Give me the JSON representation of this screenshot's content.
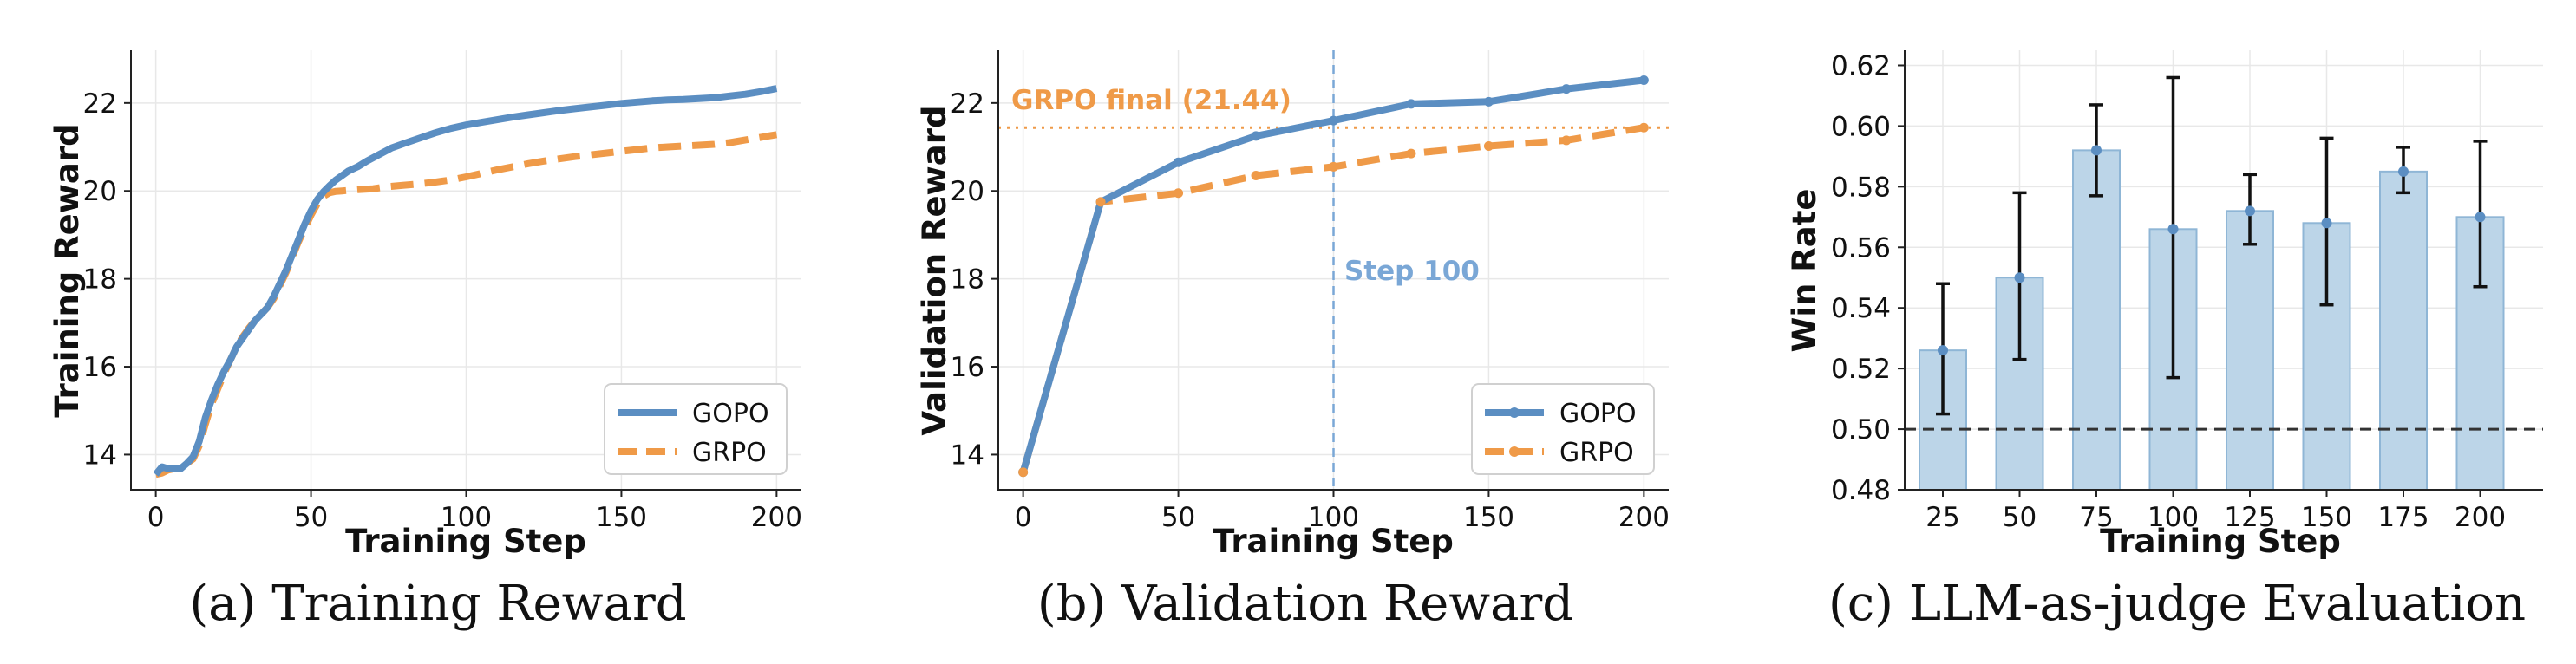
{
  "colors": {
    "gopo": "#5b8ec2",
    "grpo": "#ef9a48",
    "bar_fill": "#bcd5e8",
    "bar_edge": "#8fb6d6",
    "step_line": "#7aa7d6",
    "baseline": "#333333"
  },
  "chart_data": [
    {
      "type": "line",
      "caption": "(a) Training Reward",
      "xlabel": "Training Step",
      "ylabel": "Training Reward",
      "xlim": [
        -8,
        208
      ],
      "ylim": [
        13.2,
        23.2
      ],
      "xticks": [
        0,
        50,
        100,
        150,
        200
      ],
      "yticks": [
        14,
        16,
        18,
        20,
        22
      ],
      "legend": {
        "position": "lower-right",
        "entries": [
          "GOPO",
          "GRPO"
        ]
      },
      "series": [
        {
          "name": "GOPO",
          "x": [
            0,
            2,
            4,
            6,
            8,
            10,
            12,
            14,
            16,
            18,
            20,
            22,
            24,
            26,
            28,
            30,
            32,
            34,
            36,
            38,
            40,
            42,
            44,
            46,
            48,
            50,
            52,
            54,
            56,
            58,
            60,
            62,
            65,
            68,
            72,
            76,
            80,
            85,
            90,
            95,
            100,
            105,
            110,
            115,
            120,
            125,
            130,
            135,
            140,
            145,
            150,
            155,
            160,
            165,
            170,
            175,
            180,
            185,
            190,
            195,
            200
          ],
          "y": [
            13.55,
            13.72,
            13.68,
            13.68,
            13.68,
            13.8,
            13.95,
            14.3,
            14.85,
            15.25,
            15.6,
            15.9,
            16.15,
            16.45,
            16.65,
            16.85,
            17.05,
            17.2,
            17.35,
            17.6,
            17.9,
            18.2,
            18.55,
            18.9,
            19.25,
            19.55,
            19.8,
            19.98,
            20.12,
            20.25,
            20.35,
            20.45,
            20.55,
            20.68,
            20.83,
            20.98,
            21.08,
            21.2,
            21.32,
            21.42,
            21.5,
            21.56,
            21.62,
            21.68,
            21.73,
            21.78,
            21.83,
            21.87,
            21.91,
            21.95,
            21.99,
            22.02,
            22.05,
            22.07,
            22.08,
            22.1,
            22.12,
            22.16,
            22.2,
            22.26,
            22.33
          ]
        },
        {
          "name": "GRPO",
          "x": [
            0,
            2,
            4,
            6,
            8,
            10,
            12,
            14,
            16,
            18,
            20,
            22,
            24,
            26,
            28,
            30,
            32,
            34,
            36,
            38,
            40,
            42,
            44,
            46,
            48,
            50,
            52,
            54,
            56,
            58,
            60,
            65,
            70,
            75,
            80,
            85,
            90,
            95,
            100,
            105,
            110,
            115,
            120,
            125,
            130,
            135,
            140,
            145,
            150,
            155,
            160,
            165,
            170,
            175,
            180,
            185,
            190,
            195,
            200
          ],
          "y": [
            13.55,
            13.58,
            13.65,
            13.68,
            13.7,
            13.8,
            13.9,
            14.2,
            14.7,
            15.15,
            15.5,
            15.85,
            16.15,
            16.45,
            16.68,
            16.88,
            17.05,
            17.2,
            17.35,
            17.55,
            17.85,
            18.15,
            18.5,
            18.85,
            19.15,
            19.45,
            19.7,
            19.88,
            19.96,
            19.99,
            20.0,
            20.03,
            20.05,
            20.1,
            20.13,
            20.16,
            20.2,
            20.25,
            20.32,
            20.4,
            20.48,
            20.55,
            20.62,
            20.68,
            20.73,
            20.78,
            20.82,
            20.86,
            20.9,
            20.94,
            20.98,
            21.0,
            21.02,
            21.04,
            21.06,
            21.1,
            21.16,
            21.22,
            21.28
          ]
        }
      ]
    },
    {
      "type": "line",
      "caption": "(b) Validation Reward",
      "xlabel": "Training Step",
      "ylabel": "Validation Reward",
      "xlim": [
        -8,
        208
      ],
      "ylim": [
        13.2,
        23.2
      ],
      "xticks": [
        0,
        50,
        100,
        150,
        200
      ],
      "yticks": [
        14,
        16,
        18,
        20,
        22
      ],
      "legend": {
        "position": "lower-right",
        "entries": [
          "GOPO",
          "GRPO"
        ]
      },
      "annotations": {
        "hline": {
          "y": 21.44,
          "label": "GRPO final (21.44)"
        },
        "vline": {
          "x": 100,
          "label": "Step 100"
        }
      },
      "series": [
        {
          "name": "GOPO",
          "x": [
            0,
            25,
            50,
            75,
            100,
            125,
            150,
            175,
            200
          ],
          "y": [
            13.6,
            19.75,
            20.65,
            21.25,
            21.6,
            21.98,
            22.03,
            22.32,
            22.52
          ]
        },
        {
          "name": "GRPO",
          "x": [
            0,
            25,
            50,
            75,
            100,
            125,
            150,
            175,
            200
          ],
          "y": [
            13.6,
            19.75,
            19.95,
            20.35,
            20.55,
            20.85,
            21.02,
            21.15,
            21.44
          ]
        }
      ]
    },
    {
      "type": "bar",
      "caption": "(c) LLM-as-judge Evaluation",
      "xlabel": "Training Step",
      "ylabel": "Win Rate",
      "categories": [
        "25",
        "50",
        "75",
        "100",
        "125",
        "150",
        "175",
        "200"
      ],
      "values": [
        0.526,
        0.55,
        0.592,
        0.566,
        0.572,
        0.568,
        0.585,
        0.57
      ],
      "error_low": [
        0.505,
        0.523,
        0.577,
        0.517,
        0.561,
        0.541,
        0.578,
        0.547
      ],
      "error_high": [
        0.548,
        0.578,
        0.607,
        0.616,
        0.584,
        0.596,
        0.593,
        0.595
      ],
      "baseline": 0.5,
      "ylim": [
        0.48,
        0.625
      ],
      "yticks": [
        0.48,
        0.5,
        0.52,
        0.54,
        0.56,
        0.58,
        0.6,
        0.62
      ],
      "ytick_labels": [
        "0.48",
        "0.50",
        "0.52",
        "0.54",
        "0.56",
        "0.58",
        "0.60",
        "0.62"
      ]
    }
  ]
}
